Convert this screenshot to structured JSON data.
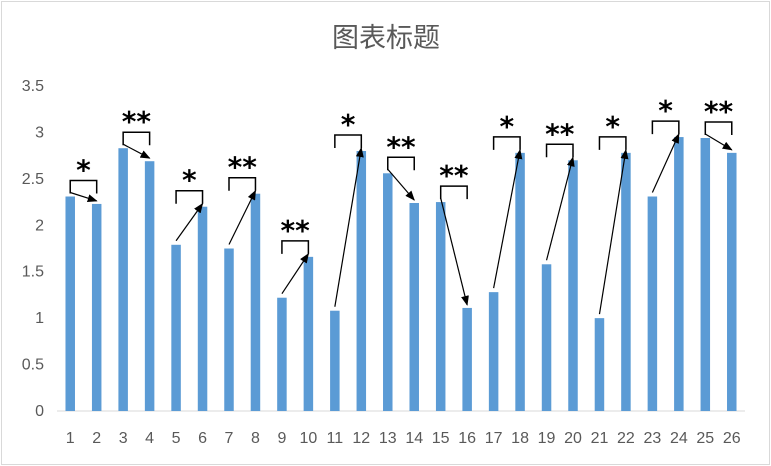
{
  "chart_data": {
    "type": "bar",
    "title": "图表标题",
    "categories": [
      "1",
      "2",
      "3",
      "4",
      "5",
      "6",
      "7",
      "8",
      "9",
      "10",
      "11",
      "12",
      "13",
      "14",
      "15",
      "16",
      "17",
      "18",
      "19",
      "20",
      "21",
      "22",
      "23",
      "24",
      "25",
      "26"
    ],
    "series": [
      {
        "values": [
          2.31,
          2.23,
          2.83,
          2.69,
          1.79,
          2.2,
          1.75,
          2.34,
          1.22,
          1.66,
          1.08,
          2.8,
          2.56,
          2.24,
          2.25,
          1.11,
          1.28,
          2.78,
          1.58,
          2.7,
          1.0,
          2.78,
          2.31,
          2.95,
          2.94,
          2.78
        ]
      }
    ],
    "yticks": [
      "0",
      "0.5",
      "1",
      "1.5",
      "2",
      "2.5",
      "3",
      "3.5"
    ],
    "ylim": [
      0,
      3.5
    ],
    "grid": false,
    "legend": "none",
    "bar_color": "#5b9bd5",
    "annotations": [
      {
        "pair": [
          1,
          2
        ],
        "label": "*"
      },
      {
        "pair": [
          3,
          4
        ],
        "label": "**"
      },
      {
        "pair": [
          5,
          6
        ],
        "label": "*"
      },
      {
        "pair": [
          7,
          8
        ],
        "label": "**"
      },
      {
        "pair": [
          9,
          10
        ],
        "label": "**"
      },
      {
        "pair": [
          11,
          12
        ],
        "label": "*"
      },
      {
        "pair": [
          13,
          14
        ],
        "label": "**"
      },
      {
        "pair": [
          15,
          16
        ],
        "label": "**"
      },
      {
        "pair": [
          17,
          18
        ],
        "label": "*"
      },
      {
        "pair": [
          19,
          20
        ],
        "label": "**"
      },
      {
        "pair": [
          21,
          22
        ],
        "label": "*"
      },
      {
        "pair": [
          23,
          24
        ],
        "label": "*"
      },
      {
        "pair": [
          25,
          26
        ],
        "label": "**"
      }
    ]
  }
}
